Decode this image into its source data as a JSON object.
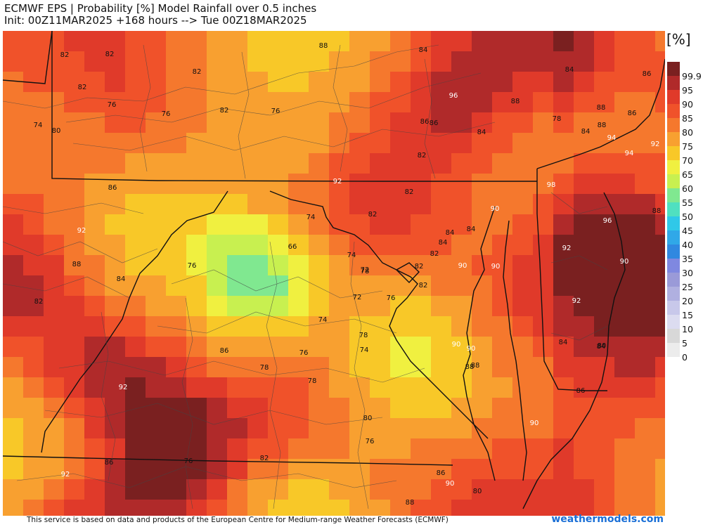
{
  "title": {
    "line1": "ECMWF EPS | Probability [%] Model Rainfall over 0.5 inches",
    "line2": "Init: 00Z11MAR2025 +168 hours --> Tue 00Z18MAR2025"
  },
  "units": "[%]",
  "legend": {
    "levels": [
      "99.9",
      "95",
      "90",
      "85",
      "80",
      "75",
      "70",
      "65",
      "60",
      "55",
      "50",
      "45",
      "40",
      "35",
      "30",
      "25",
      "20",
      "15",
      "10",
      "5",
      "0"
    ],
    "colors": [
      "#7a2020",
      "#b02a2a",
      "#e03a2a",
      "#f0522a",
      "#f5782d",
      "#f8a030",
      "#f8c828",
      "#f0f040",
      "#c8f050",
      "#80e890",
      "#50e0c0",
      "#30c8e8",
      "#30a8e8",
      "#3088e0",
      "#7f88e0",
      "#9a9ad8",
      "#b0b0e0",
      "#c8c8ea",
      "#dcdcf0",
      "#d8d8d8",
      "#ececec"
    ]
  },
  "map_labels": [
    {
      "text": "82",
      "dark": true
    },
    {
      "text": "82",
      "dark": true
    },
    {
      "text": "88",
      "dark": true
    },
    {
      "text": "84",
      "dark": true
    },
    {
      "text": "82",
      "dark": true
    },
    {
      "text": "84",
      "dark": true
    },
    {
      "text": "86",
      "dark": true
    },
    {
      "text": "82",
      "dark": true
    },
    {
      "text": "96",
      "dark": false
    },
    {
      "text": "76",
      "dark": true
    },
    {
      "text": "82",
      "dark": true
    },
    {
      "text": "76",
      "dark": true
    },
    {
      "text": "88",
      "dark": true
    },
    {
      "text": "88",
      "dark": true
    },
    {
      "text": "74",
      "dark": true
    },
    {
      "text": "80",
      "dark": true
    },
    {
      "text": "76",
      "dark": true
    },
    {
      "text": "86",
      "dark": true
    },
    {
      "text": "86",
      "dark": true
    },
    {
      "text": "86",
      "dark": true
    },
    {
      "text": "78",
      "dark": true
    },
    {
      "text": "84",
      "dark": true
    },
    {
      "text": "84",
      "dark": true
    },
    {
      "text": "88",
      "dark": true
    },
    {
      "text": "94",
      "dark": false
    },
    {
      "text": "94",
      "dark": false
    },
    {
      "text": "92",
      "dark": false
    },
    {
      "text": "82",
      "dark": true
    },
    {
      "text": "92",
      "dark": false
    },
    {
      "text": "86",
      "dark": true
    },
    {
      "text": "82",
      "dark": true
    },
    {
      "text": "98",
      "dark": false
    },
    {
      "text": "82",
      "dark": true
    },
    {
      "text": "90",
      "dark": false
    },
    {
      "text": "88",
      "dark": true
    },
    {
      "text": "74",
      "dark": true
    },
    {
      "text": "92",
      "dark": false
    },
    {
      "text": "96",
      "dark": false
    },
    {
      "text": "66",
      "dark": true
    },
    {
      "text": "84",
      "dark": true
    },
    {
      "text": "84",
      "dark": true
    },
    {
      "text": "84",
      "dark": true
    },
    {
      "text": "82",
      "dark": true
    },
    {
      "text": "76",
      "dark": true
    },
    {
      "text": "74",
      "dark": true
    },
    {
      "text": "88",
      "dark": true
    },
    {
      "text": "92",
      "dark": false
    },
    {
      "text": "72",
      "dark": true
    },
    {
      "text": "82",
      "dark": true
    },
    {
      "text": "90",
      "dark": false
    },
    {
      "text": "90",
      "dark": false
    },
    {
      "text": "84",
      "dark": true
    },
    {
      "text": "78",
      "dark": true
    },
    {
      "text": "82",
      "dark": true
    },
    {
      "text": "72",
      "dark": true
    },
    {
      "text": "76",
      "dark": true
    },
    {
      "text": "82",
      "dark": true
    },
    {
      "text": "92",
      "dark": false
    },
    {
      "text": "74",
      "dark": true
    },
    {
      "text": "78",
      "dark": true
    },
    {
      "text": "86",
      "dark": true
    },
    {
      "text": "74",
      "dark": true
    },
    {
      "text": "76",
      "dark": true
    },
    {
      "text": "90",
      "dark": false
    },
    {
      "text": "90",
      "dark": false
    },
    {
      "text": "88",
      "dark": true
    },
    {
      "text": "78",
      "dark": true
    },
    {
      "text": "92",
      "dark": false
    },
    {
      "text": "78",
      "dark": true
    },
    {
      "text": "84",
      "dark": true
    },
    {
      "text": "88",
      "dark": true
    },
    {
      "text": "80",
      "dark": true
    },
    {
      "text": "90",
      "dark": false
    },
    {
      "text": "80",
      "dark": true
    },
    {
      "text": "86",
      "dark": true
    },
    {
      "text": "76",
      "dark": true
    },
    {
      "text": "82",
      "dark": true
    },
    {
      "text": "92",
      "dark": false
    },
    {
      "text": "86",
      "dark": true
    },
    {
      "text": "76",
      "dark": true
    },
    {
      "text": "90",
      "dark": false
    },
    {
      "text": "86",
      "dark": true
    },
    {
      "text": "90",
      "dark": false
    },
    {
      "text": "80",
      "dark": true
    },
    {
      "text": "88",
      "dark": true
    },
    {
      "text": "84",
      "dark": true
    }
  ],
  "footer": "This service is based on data and products of the European Centre for Medium-range Weather Forecasts (ECMWF)",
  "brand": "weathermodels.com"
}
